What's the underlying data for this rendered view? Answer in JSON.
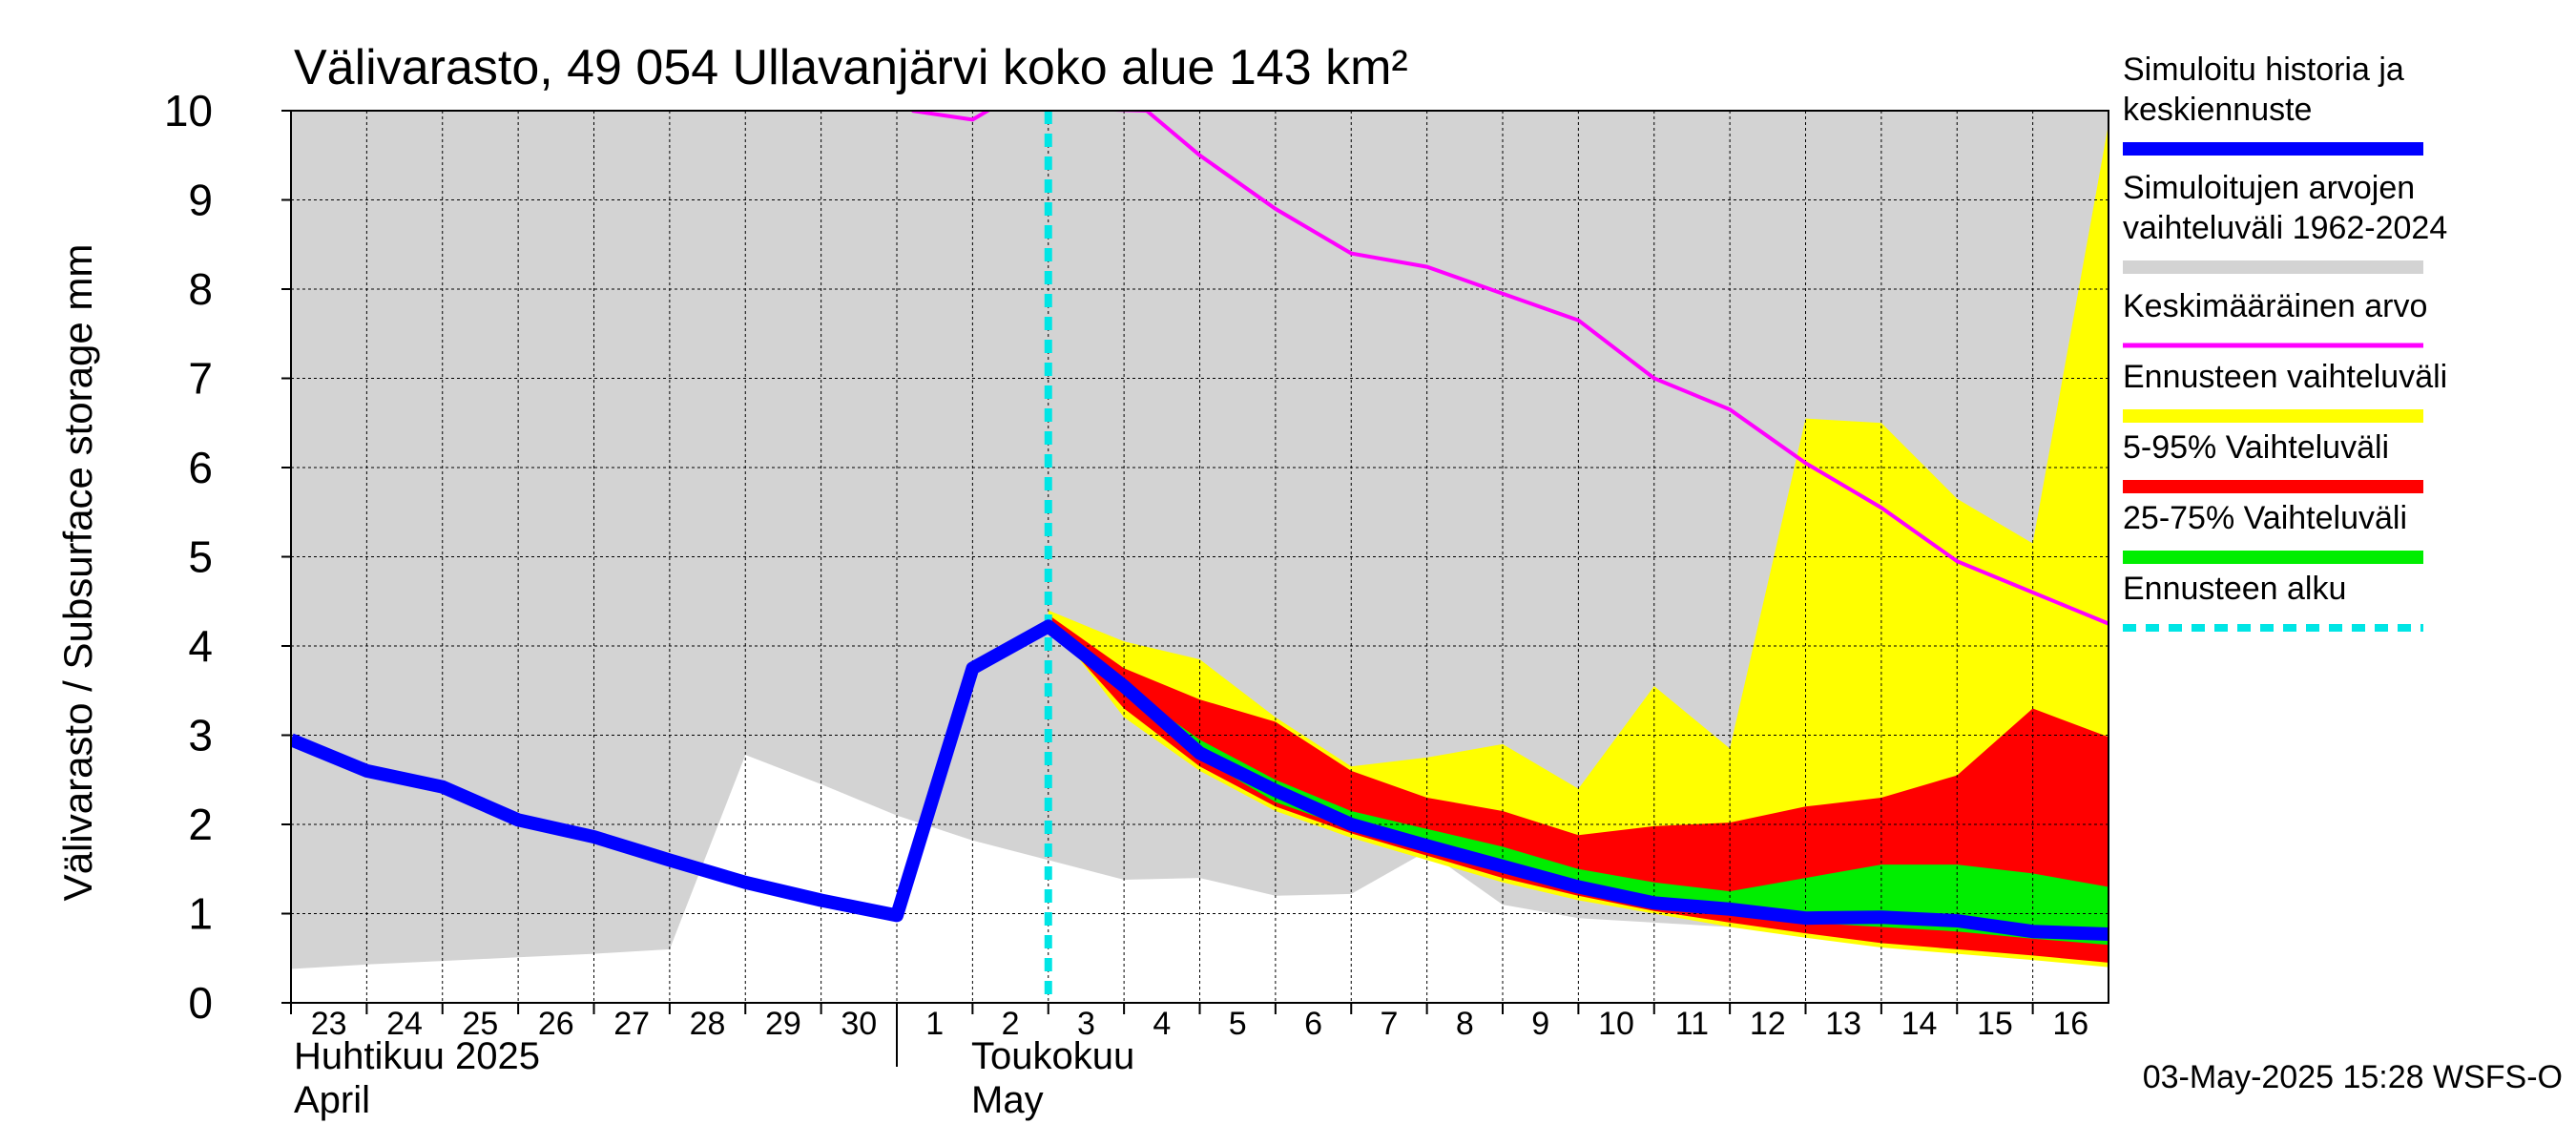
{
  "chart_data": {
    "type": "area",
    "title": "Välivarasto, 49 054 Ullavanjärvi koko alue 143 km²",
    "ylabel": "Välivarasto / Subsurface storage  mm",
    "ylim": [
      0,
      10
    ],
    "y_ticks": [
      "0",
      "1",
      "2",
      "3",
      "4",
      "5",
      "6",
      "7",
      "8",
      "9",
      "10"
    ],
    "x_ticks": [
      "23",
      "24",
      "25",
      "26",
      "27",
      "28",
      "29",
      "30",
      "1",
      "2",
      "3",
      "4",
      "5",
      "6",
      "7",
      "8",
      "9",
      "10",
      "11",
      "12",
      "13",
      "14",
      "15",
      "16"
    ],
    "x_range": [
      0,
      24
    ],
    "month_labels": {
      "april_fi": "Huhtikuu  2025",
      "april_en": "April",
      "may_fi": "Toukokuu",
      "may_en": "May"
    },
    "footer": "03-May-2025 15:28 WSFS-O",
    "forecast_start_x": 10,
    "grid": true,
    "legend_position": "right",
    "colors": {
      "simulated_range": "#d3d3d3",
      "mean": "#ff00ff",
      "forecast_range": "#ffff00",
      "p5_95": "#ff0000",
      "p25_75": "#00ee00",
      "history": "#0000ff",
      "forecast_start": "#00e5e5"
    },
    "legend": [
      {
        "key": "history",
        "lines": [
          "Simuloitu historia ja",
          "keskiennuste"
        ]
      },
      {
        "key": "simulated_range",
        "lines": [
          "Simuloitujen arvojen",
          "vaihteluväli 1962-2024"
        ]
      },
      {
        "key": "mean",
        "lines": [
          "Keskimääräinen arvo"
        ]
      },
      {
        "key": "forecast_range",
        "lines": [
          "Ennusteen vaihteluväli"
        ]
      },
      {
        "key": "p5_95",
        "lines": [
          "5-95% Vaihteluväli"
        ]
      },
      {
        "key": "p25_75",
        "lines": [
          "25-75% Vaihteluväli"
        ]
      },
      {
        "key": "forecast_start",
        "lines": [
          "Ennusteen alku"
        ]
      }
    ],
    "series": {
      "simulated_range": {
        "x": [
          0,
          1,
          2,
          3,
          4,
          5,
          6,
          7,
          8,
          9,
          10,
          11,
          12,
          13,
          14,
          15,
          16,
          17,
          18,
          19,
          20,
          21,
          22,
          23,
          24
        ],
        "low": [
          0.38,
          0.43,
          0.47,
          0.51,
          0.55,
          0.6,
          2.78,
          2.45,
          2.1,
          1.82,
          1.6,
          1.38,
          1.4,
          1.2,
          1.22,
          1.7,
          1.1,
          0.95,
          0.9,
          0.85,
          0.85,
          0.8,
          0.75,
          0.7,
          0.7
        ],
        "high": [
          10,
          10,
          10,
          10,
          10,
          10,
          10,
          10,
          10,
          10,
          10,
          10,
          10,
          10,
          10,
          10,
          10,
          10,
          10,
          10,
          10,
          10,
          10,
          10,
          10
        ]
      },
      "mean": {
        "x": [
          8.2,
          9,
          9.3,
          11.3,
          12,
          13,
          14,
          15,
          16,
          17,
          18,
          19,
          20,
          21,
          22,
          23,
          24
        ],
        "y": [
          10,
          9.9,
          10.05,
          10,
          9.5,
          8.9,
          8.4,
          8.25,
          7.95,
          7.65,
          7.0,
          6.65,
          6.05,
          5.55,
          4.95,
          4.6,
          4.25
        ]
      },
      "forecast_range": {
        "x": [
          10,
          11,
          12,
          13,
          14,
          15,
          16,
          17,
          18,
          19,
          20,
          21,
          22,
          23,
          24
        ],
        "low": [
          4.3,
          3.2,
          2.6,
          2.15,
          1.85,
          1.6,
          1.35,
          1.15,
          1.0,
          0.85,
          0.73,
          0.62,
          0.55,
          0.48,
          0.4
        ],
        "high": [
          4.4,
          4.05,
          3.85,
          3.2,
          2.65,
          2.75,
          2.9,
          2.4,
          3.55,
          2.85,
          6.55,
          6.5,
          5.65,
          5.15,
          9.85
        ]
      },
      "p5_95": {
        "x": [
          10,
          11,
          12,
          13,
          14,
          15,
          16,
          17,
          18,
          19,
          20,
          21,
          22,
          23,
          24
        ],
        "low": [
          4.25,
          3.3,
          2.65,
          2.2,
          1.9,
          1.65,
          1.4,
          1.2,
          1.03,
          0.9,
          0.78,
          0.67,
          0.6,
          0.53,
          0.45
        ],
        "high": [
          4.35,
          3.75,
          3.4,
          3.15,
          2.6,
          2.3,
          2.15,
          1.88,
          1.98,
          2.02,
          2.2,
          2.3,
          2.55,
          3.3,
          2.98
        ]
      },
      "p25_75": {
        "x": [
          10,
          11,
          12,
          13,
          14,
          15,
          16,
          17,
          18,
          19,
          20,
          21,
          22,
          23,
          24
        ],
        "low": [
          4.25,
          3.45,
          2.75,
          2.25,
          1.95,
          1.7,
          1.5,
          1.3,
          1.1,
          1.0,
          0.9,
          0.85,
          0.8,
          0.72,
          0.65
        ],
        "high": [
          4.3,
          3.55,
          2.95,
          2.5,
          2.15,
          1.95,
          1.75,
          1.5,
          1.35,
          1.25,
          1.4,
          1.55,
          1.55,
          1.45,
          1.3
        ]
      },
      "history": {
        "x": [
          0,
          1,
          2,
          3,
          4,
          5,
          6,
          7,
          8,
          9,
          10,
          11,
          12,
          13,
          14,
          15,
          16,
          17,
          18,
          19,
          20,
          21,
          22,
          23,
          24
        ],
        "y": [
          2.95,
          2.6,
          2.42,
          2.05,
          1.86,
          1.6,
          1.35,
          1.15,
          0.98,
          3.75,
          4.22,
          3.55,
          2.8,
          2.38,
          2.0,
          1.76,
          1.53,
          1.3,
          1.12,
          1.05,
          0.95,
          0.96,
          0.92,
          0.8,
          0.77
        ]
      }
    }
  }
}
